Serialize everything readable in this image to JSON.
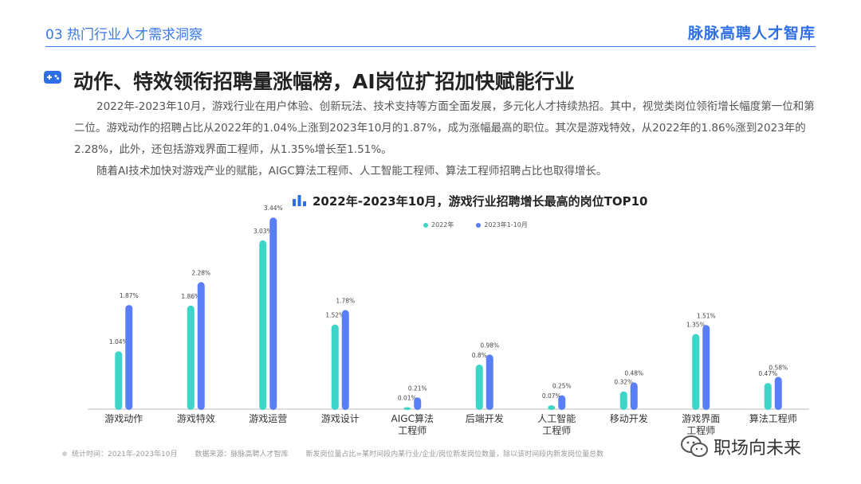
{
  "header": {
    "section_label": "03 热门行业人才需求洞察",
    "brand": "脉脉高聘人才智库"
  },
  "heading": "动作、特效领衔招聘量涨幅榜，AI岗位扩招加快赋能行业",
  "paragraphs": [
    "2022年-2023年10月，游戏行业在用户体验、创新玩法、技术支持等方面全面发展，多元化人才持续热招。其中，视觉类岗位领衔增长幅度第一位和第二位。游戏动作的招聘占比从2022年的1.04%上涨到2023年10月的1.87%，成为涨幅最高的职位。其次是游戏特效，从2022年的1.86%涨到2023年的2.28%，此外，还包括游戏界面工程师，从1.35%增长至1.51%。",
    "随着AI技术加快对游戏产业的赋能，AIGC算法工程师、人工智能工程师、算法工程师招聘占比也取得增长。"
  ],
  "chart_data": {
    "type": "bar",
    "title": "2022年-2023年10月，游戏行业招聘增长最高的岗位TOP10",
    "categories": [
      "游戏动作",
      "游戏特效",
      "游戏运营",
      "游戏设计",
      "AIGC算法\n工程师",
      "后端开发",
      "人工智能\n工程师",
      "移动开发",
      "游戏界面\n工程师",
      "算法工程师"
    ],
    "series": [
      {
        "name": "2022年",
        "color": "#3dd5c8",
        "values": [
          1.04,
          1.86,
          3.03,
          1.52,
          0.01,
          0.8,
          0.07,
          0.32,
          1.35,
          0.47
        ],
        "labels": [
          "1.04%",
          "1.86%",
          "3.03%",
          "1.52%",
          "0.01%",
          "0.8%",
          "0.07%",
          "0.32%",
          "1.35%",
          "0.47%"
        ]
      },
      {
        "name": "2023年1-10月",
        "color": "#5a7ef5",
        "values": [
          1.87,
          2.28,
          3.44,
          1.78,
          0.21,
          0.98,
          0.25,
          0.48,
          1.51,
          0.58
        ],
        "labels": [
          "1.87%",
          "2.28%",
          "3.44%",
          "1.78%",
          "0.21%",
          "0.98%",
          "0.25%",
          "0.48%",
          "1.51%",
          "0.58%"
        ]
      }
    ],
    "ylim": [
      0,
      3.5
    ],
    "grid": false,
    "legend_position": "top-right"
  },
  "footer": {
    "stat_time": "统计时间：2021年-2023年10月",
    "source": "数据来源：脉脉高聘人才智库",
    "definition": "新发岗位量占比=某时间段内某行业/企业/岗位新发岗位数量，除以该时间段内新发岗位量总数"
  },
  "watermark": "职场向未来"
}
